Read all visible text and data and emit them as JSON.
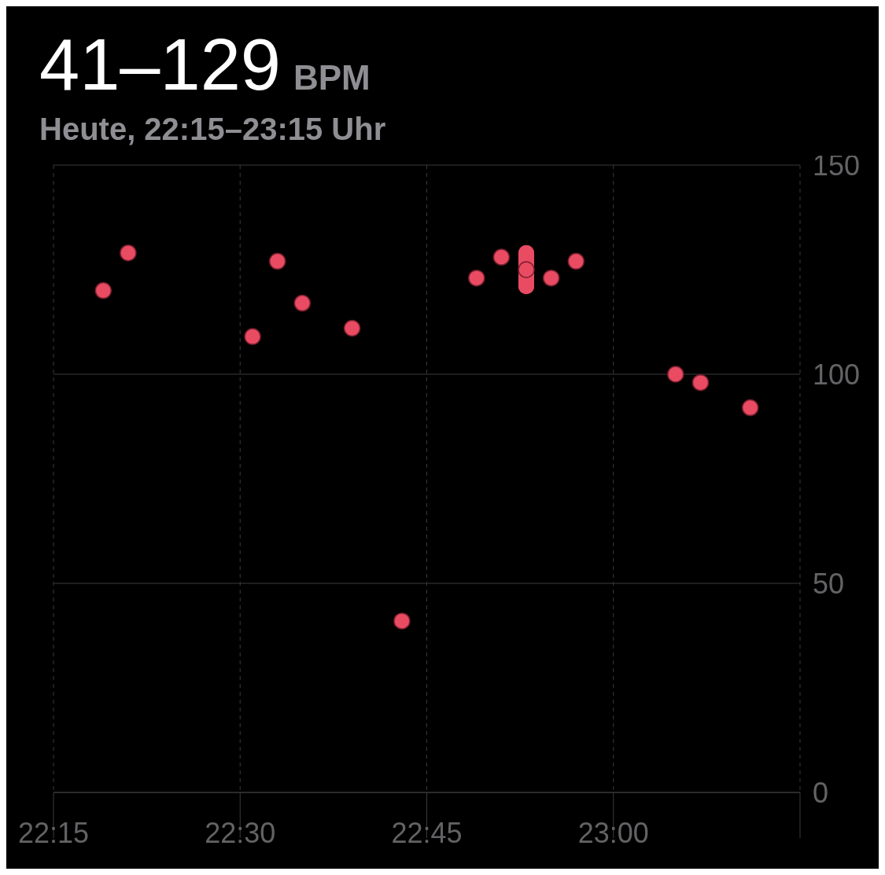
{
  "chart_data": {
    "type": "scatter",
    "title": "41–129 BPM",
    "subtitle": "Heute, 22:15–23:15 Uhr",
    "x": [
      22.3167,
      22.35,
      22.5167,
      22.55,
      22.5833,
      22.65,
      22.7167,
      22.8167,
      22.85,
      22.8833,
      22.9167,
      22.95,
      23.0833,
      23.1167,
      23.1833
    ],
    "series": [
      {
        "color": "#e94b63",
        "values": [
          120,
          129,
          109,
          127,
          117,
          111,
          41,
          123,
          128,
          125,
          123,
          127,
          100,
          98,
          92
        ],
        "errors": [
          null,
          null,
          null,
          null,
          null,
          null,
          null,
          null,
          null,
          4,
          null,
          null,
          null,
          null,
          null
        ]
      }
    ],
    "xlim": [
      22.25,
      23.25
    ],
    "xticks": [
      {
        "value": 22.25,
        "label": "22:15"
      },
      {
        "value": 22.5,
        "label": "22:30"
      },
      {
        "value": 22.75,
        "label": "22:45"
      },
      {
        "value": 23,
        "label": "23:00"
      },
      {
        "value": 23.25,
        "label": null
      }
    ],
    "ylim": [
      0,
      150
    ],
    "yticks": [
      0,
      50,
      100,
      150
    ],
    "grid": true,
    "marker": "circle"
  }
}
